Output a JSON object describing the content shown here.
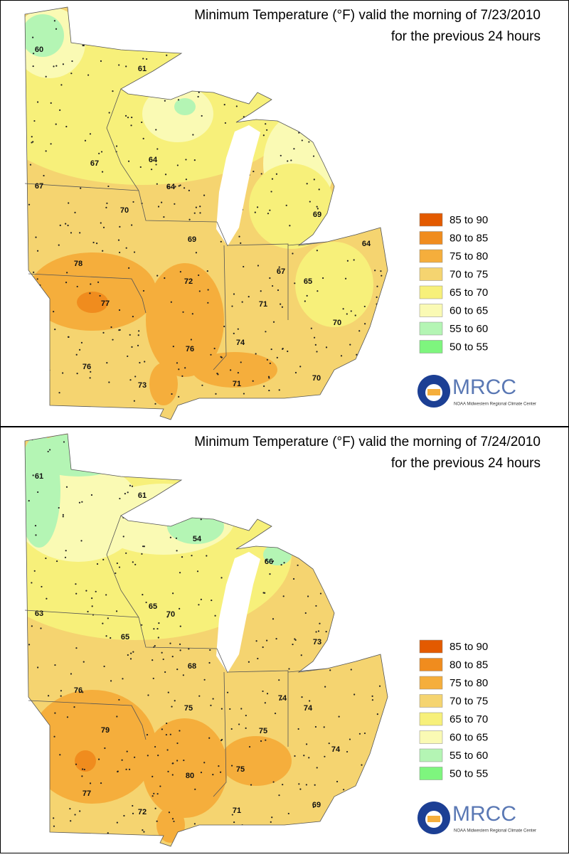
{
  "panels": [
    {
      "title": "Minimum Temperature (°F) valid the morning of 7/23/2010",
      "subtitle": "for the previous 24 hours",
      "labels": [
        60,
        61,
        67,
        64,
        67,
        64,
        70,
        69,
        69,
        64,
        78,
        67,
        72,
        65,
        77,
        71,
        70,
        74,
        76,
        76,
        73,
        71,
        70
      ],
      "legend": [
        {
          "label": "85 to 90",
          "color": "#e35a00"
        },
        {
          "label": "80 to 85",
          "color": "#f08c1e"
        },
        {
          "label": "75 to 80",
          "color": "#f5ae3c"
        },
        {
          "label": "70 to 75",
          "color": "#f5d470"
        },
        {
          "label": "65 to 70",
          "color": "#f7f07a"
        },
        {
          "label": "60 to 65",
          "color": "#fafab4"
        },
        {
          "label": "55 to 60",
          "color": "#b4f5b4"
        },
        {
          "label": "50 to 55",
          "color": "#7ef57e"
        }
      ],
      "logo": "MRCC",
      "logo_subtitle": "NOAA Midwestern Regional Climate Center"
    },
    {
      "title": "Minimum Temperature (°F) valid the morning of 7/24/2010",
      "subtitle": "for the previous 24 hours",
      "labels": [
        61,
        61,
        54,
        66,
        65,
        70,
        63,
        65,
        73,
        68,
        76,
        74,
        74,
        75,
        79,
        75,
        74,
        75,
        80,
        77,
        72,
        71,
        69
      ],
      "legend": [
        {
          "label": "85 to 90",
          "color": "#e35a00"
        },
        {
          "label": "80 to 85",
          "color": "#f08c1e"
        },
        {
          "label": "75 to 80",
          "color": "#f5ae3c"
        },
        {
          "label": "70 to 75",
          "color": "#f5d470"
        },
        {
          "label": "65 to 70",
          "color": "#f7f07a"
        },
        {
          "label": "60 to 65",
          "color": "#fafab4"
        },
        {
          "label": "55 to 60",
          "color": "#b4f5b4"
        },
        {
          "label": "50 to 55",
          "color": "#7ef57e"
        }
      ],
      "logo": "MRCC",
      "logo_subtitle": "NOAA Midwestern Regional Climate Center"
    }
  ]
}
